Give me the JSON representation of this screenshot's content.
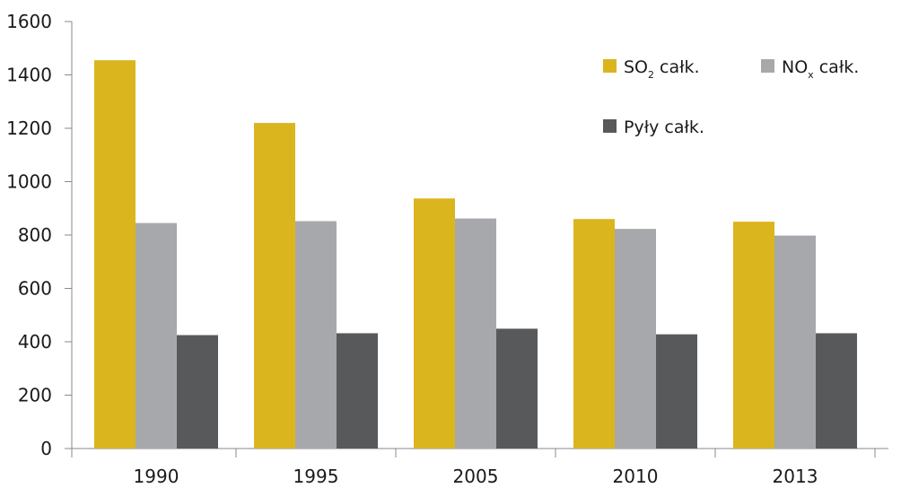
{
  "chart_data": {
    "type": "bar",
    "categories": [
      "1990",
      "1995",
      "2005",
      "2010",
      "2013"
    ],
    "series": [
      {
        "name": "SO2 całk.",
        "label_main": "SO",
        "label_sub": "2",
        "label_rest": " całk.",
        "color": "#dbb51e",
        "values": [
          1455,
          1220,
          937,
          860,
          850
        ]
      },
      {
        "name": "NOx całk.",
        "label_main": "NO",
        "label_sub": "x",
        "label_rest": " całk.",
        "color": "#a7a8ab",
        "values": [
          845,
          852,
          862,
          823,
          798
        ]
      },
      {
        "name": "Pyły całk.",
        "label_main": "Pyły całk.",
        "label_sub": "",
        "label_rest": "",
        "color": "#58595b",
        "values": [
          425,
          432,
          449,
          428,
          432
        ]
      }
    ],
    "yticks": [
      "0",
      "200",
      "400",
      "600",
      "800",
      "1000",
      "1200",
      "1400",
      "1600"
    ],
    "ylim": [
      0,
      1600
    ],
    "title": "",
    "xlabel": "",
    "ylabel": "",
    "grid": false,
    "legend_position": "top-right"
  }
}
